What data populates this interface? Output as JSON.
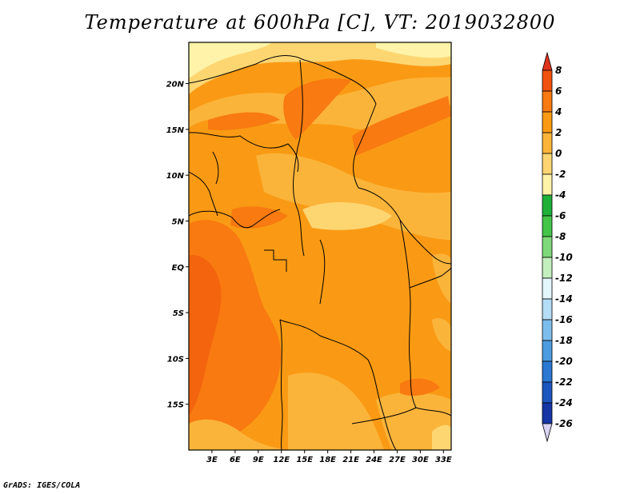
{
  "title": "Temperature at 600hPa [C], VT: 2019032800",
  "credit": "GrADS: IGES/COLA",
  "map": {
    "lon_range": [
      0,
      34
    ],
    "lat_range": [
      -20,
      24.5
    ],
    "lat_ticks": [
      {
        "value": 20,
        "label": "20N"
      },
      {
        "value": 15,
        "label": "15N"
      },
      {
        "value": 10,
        "label": "10N"
      },
      {
        "value": 5,
        "label": "5N"
      },
      {
        "value": 0,
        "label": "EQ"
      },
      {
        "value": -5,
        "label": "5S"
      },
      {
        "value": -10,
        "label": "10S"
      },
      {
        "value": -15,
        "label": "15S"
      }
    ],
    "lon_ticks": [
      {
        "value": 3,
        "label": "3E"
      },
      {
        "value": 6,
        "label": "6E"
      },
      {
        "value": 9,
        "label": "9E"
      },
      {
        "value": 12,
        "label": "12E"
      },
      {
        "value": 15,
        "label": "15E"
      },
      {
        "value": 18,
        "label": "18E"
      },
      {
        "value": 21,
        "label": "21E"
      },
      {
        "value": 24,
        "label": "24E"
      },
      {
        "value": 27,
        "label": "27E"
      },
      {
        "value": 30,
        "label": "30E"
      },
      {
        "value": 33,
        "label": "33E"
      }
    ]
  },
  "colorbar": {
    "levels": [
      "8",
      "6",
      "4",
      "2",
      "0",
      "-2",
      "-4",
      "-6",
      "-8",
      "-10",
      "-12",
      "-14",
      "-16",
      "-18",
      "-20",
      "-22",
      "-24",
      "-26"
    ],
    "colors": [
      "#e0331c",
      "#f0520f",
      "#f87a10",
      "#fa9a14",
      "#fbb43a",
      "#fdd672",
      "#fef3a8",
      "#1fb03a",
      "#43c54a",
      "#7fd97a",
      "#c3efbe",
      "#e3f6fb",
      "#b4ddf6",
      "#7dbdec",
      "#4d9be0",
      "#2c78d3",
      "#1d56bf",
      "#1536a4",
      "#0c1c80",
      "#d9d4f3"
    ]
  }
}
